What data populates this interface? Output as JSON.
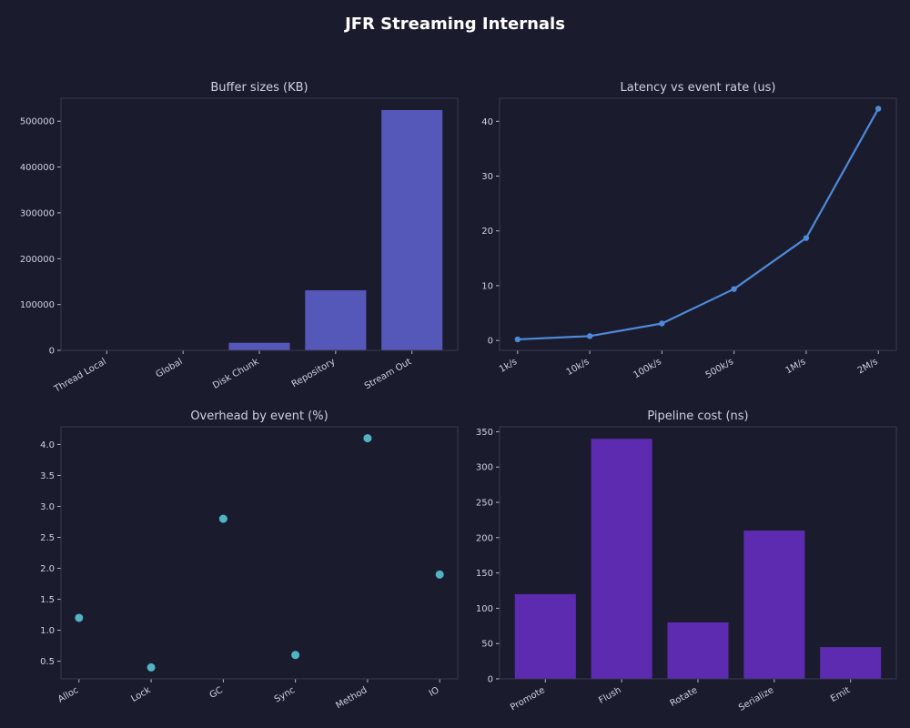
{
  "figure": {
    "title": "JFR Streaming Internals",
    "background": "#1b1b2e"
  },
  "chart_data": [
    {
      "type": "bar",
      "title": "Buffer sizes (KB)",
      "categories": [
        "Thread Local",
        "Global",
        "Disk Chunk",
        "Repository",
        "Stream Out"
      ],
      "values": [
        64,
        512,
        16384,
        131072,
        524288
      ],
      "ylim": [
        0,
        550000
      ],
      "yticks": [
        0,
        100000,
        200000,
        300000,
        400000,
        500000
      ],
      "color": "#5558b9",
      "xlabel": "",
      "ylabel": ""
    },
    {
      "type": "line",
      "title": "Latency vs event rate (us)",
      "categories": [
        "1k/s",
        "10k/s",
        "100k/s",
        "500k/s",
        "1M/s",
        "2M/s"
      ],
      "values": [
        0.2,
        0.8,
        3.1,
        9.4,
        18.7,
        42.3
      ],
      "ylim": [
        -1.8,
        44.2
      ],
      "yticks": [
        0,
        10,
        20,
        30,
        40
      ],
      "color": "#4e8ad8",
      "markers": true,
      "xlabel": "",
      "ylabel": ""
    },
    {
      "type": "scatter",
      "title": "Overhead by event (%)",
      "categories": [
        "Alloc",
        "Lock",
        "GC",
        "Sync",
        "Method",
        "IO"
      ],
      "values": [
        1.2,
        0.4,
        2.8,
        0.6,
        4.1,
        1.9
      ],
      "ylim": [
        0.215,
        4.285
      ],
      "yticks": [
        0.5,
        1.0,
        1.5,
        2.0,
        2.5,
        3.0,
        3.5,
        4.0
      ],
      "color": "#4fb5c4",
      "xlabel": "",
      "ylabel": ""
    },
    {
      "type": "bar",
      "title": "Pipeline cost (ns)",
      "categories": [
        "Promote",
        "Flush",
        "Rotate",
        "Serialize",
        "Emit"
      ],
      "values": [
        120,
        340,
        80,
        210,
        45
      ],
      "ylim": [
        0,
        357
      ],
      "yticks": [
        0,
        50,
        100,
        150,
        200,
        250,
        300,
        350
      ],
      "color": "#5d2bb0",
      "xlabel": "",
      "ylabel": ""
    }
  ]
}
